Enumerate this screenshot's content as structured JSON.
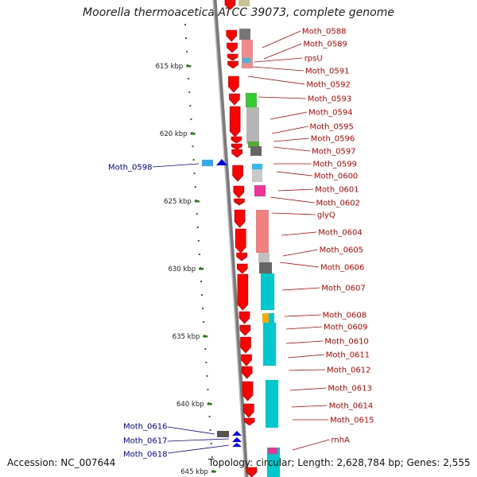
{
  "title": "Moorella thermoacetica ATCC 39073, complete genome",
  "footer": {
    "accession": "Accession: NC_007644",
    "topology": "Topology: circular; Length: 2,628,784 bp; Genes: 2,555"
  },
  "ruler": {
    "ticks": [
      "615 kbp",
      "620 kbp",
      "625 kbp",
      "630 kbp",
      "635 kbp",
      "640 kbp",
      "645 kbp"
    ]
  },
  "colors": {
    "forward_gene": "#ff0000",
    "reverse_gene": "#0000ee",
    "forward_label": "#cc0000",
    "reverse_label": "#0000aa",
    "ruler": "#2a7a1a",
    "backbone": "#808080"
  },
  "forward_labels": [
    "Moth_0588",
    "Moth_0589",
    "rpsU",
    "Moth_0591",
    "Moth_0592",
    "Moth_0593",
    "Moth_0594",
    "Moth_0595",
    "Moth_0596",
    "Moth_0597",
    "Moth_0599",
    "Moth_0600",
    "Moth_0601",
    "Moth_0602",
    "glyQ",
    "Moth_0604",
    "Moth_0605",
    "Moth_0606",
    "Moth_0607",
    "Moth_0608",
    "Moth_0609",
    "Moth_0610",
    "Moth_0611",
    "Moth_0612",
    "Moth_0613",
    "Moth_0614",
    "Moth_0615",
    "rnhA"
  ],
  "reverse_labels": [
    "Moth_0598",
    "Moth_0616",
    "Moth_0617",
    "Moth_0618"
  ]
}
